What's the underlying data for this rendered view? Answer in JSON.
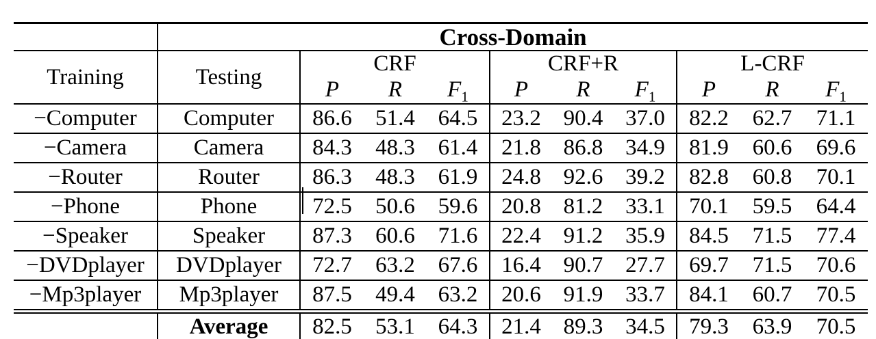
{
  "table": {
    "title": "Cross-Domain",
    "training_header": "Training",
    "testing_header": "Testing",
    "groups": [
      {
        "name": "CRF"
      },
      {
        "name": "CRF+R"
      },
      {
        "name": "L-CRF"
      }
    ],
    "metrics": [
      {
        "base": "P",
        "sub": ""
      },
      {
        "base": "R",
        "sub": ""
      },
      {
        "base": "F",
        "sub": "1"
      }
    ],
    "rows": [
      {
        "training": "−Computer",
        "testing": "Computer",
        "values": [
          "86.6",
          "51.4",
          "64.5",
          "23.2",
          "90.4",
          "37.0",
          "82.2",
          "62.7",
          "71.1"
        ]
      },
      {
        "training": "−Camera",
        "testing": "Camera",
        "values": [
          "84.3",
          "48.3",
          "61.4",
          "21.8",
          "86.8",
          "34.9",
          "81.9",
          "60.6",
          "69.6"
        ]
      },
      {
        "training": "−Router",
        "testing": "Router",
        "values": [
          "86.3",
          "48.3",
          "61.9",
          "24.8",
          "92.6",
          "39.2",
          "82.8",
          "60.8",
          "70.1"
        ]
      },
      {
        "training": "−Phone",
        "testing": "Phone",
        "values": [
          "72.5",
          "50.6",
          "59.6",
          "20.8",
          "81.2",
          "33.1",
          "70.1",
          "59.5",
          "64.4"
        ]
      },
      {
        "training": "−Speaker",
        "testing": "Speaker",
        "values": [
          "87.3",
          "60.6",
          "71.6",
          "22.4",
          "91.2",
          "35.9",
          "84.5",
          "71.5",
          "77.4"
        ]
      },
      {
        "training": "−DVDplayer",
        "testing": "DVDplayer",
        "values": [
          "72.7",
          "63.2",
          "67.6",
          "16.4",
          "90.7",
          "27.7",
          "69.7",
          "71.5",
          "70.6"
        ]
      },
      {
        "training": "−Mp3player",
        "testing": "Mp3player",
        "values": [
          "87.5",
          "49.4",
          "63.2",
          "20.6",
          "91.9",
          "33.7",
          "84.1",
          "60.7",
          "70.5"
        ]
      }
    ],
    "average": {
      "training": "",
      "testing": "Average",
      "values": [
        "82.5",
        "53.1",
        "64.3",
        "21.4",
        "89.3",
        "34.5",
        "79.3",
        "63.9",
        "70.5"
      ]
    }
  }
}
